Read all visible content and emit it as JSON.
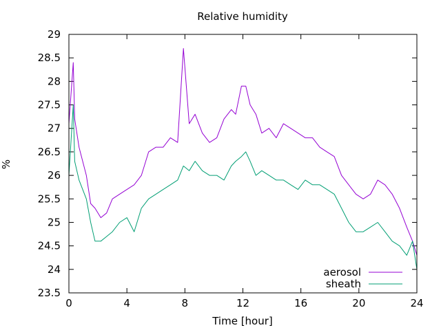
{
  "chart_data": {
    "type": "line",
    "title": "Relative humidity",
    "xlabel": "Time [hour]",
    "ylabel": "%",
    "xlim": [
      0,
      24
    ],
    "ylim": [
      23.5,
      29
    ],
    "x_ticks": [
      0,
      4,
      8,
      12,
      16,
      20,
      24
    ],
    "y_ticks": [
      23.5,
      24,
      24.5,
      25,
      25.5,
      26,
      26.5,
      27,
      27.5,
      28,
      28.5,
      29
    ],
    "grid": false,
    "legend_position": "bottom-right",
    "series": [
      {
        "name": "aerosol",
        "color": "#9400d3",
        "x": [
          0,
          0.3,
          0.4,
          0.7,
          1.2,
          1.5,
          1.8,
          2.2,
          2.6,
          3,
          3.5,
          4,
          4.5,
          5,
          5.5,
          6,
          6.5,
          7,
          7.5,
          7.9,
          8.3,
          8.7,
          9.2,
          9.7,
          10.2,
          10.7,
          11.2,
          11.5,
          11.9,
          12.2,
          12.5,
          12.9,
          13.3,
          13.8,
          14.3,
          14.8,
          15.3,
          15.8,
          16.3,
          16.8,
          17.3,
          17.8,
          18.3,
          18.8,
          19.3,
          19.8,
          20.3,
          20.8,
          21.3,
          21.8,
          22.3,
          22.8,
          23.3,
          23.7,
          24
        ],
        "values": [
          27.1,
          28.4,
          27.2,
          26.6,
          26.0,
          25.4,
          25.3,
          25.1,
          25.2,
          25.5,
          25.6,
          25.7,
          25.8,
          26.0,
          26.5,
          26.6,
          26.6,
          26.8,
          26.7,
          28.7,
          27.1,
          27.3,
          26.9,
          26.7,
          26.8,
          27.2,
          27.4,
          27.3,
          27.9,
          27.9,
          27.5,
          27.3,
          26.9,
          27.0,
          26.8,
          27.1,
          27.0,
          26.9,
          26.8,
          26.8,
          26.6,
          26.5,
          26.4,
          26.0,
          25.8,
          25.6,
          25.5,
          25.6,
          25.9,
          25.8,
          25.6,
          25.3,
          24.9,
          24.6,
          24.3
        ]
      },
      {
        "name": "sheath",
        "color": "#009e73",
        "x": [
          0,
          0.3,
          0.4,
          0.7,
          1.2,
          1.5,
          1.8,
          2.2,
          2.6,
          3,
          3.5,
          4,
          4.5,
          5,
          5.5,
          6,
          6.5,
          7,
          7.5,
          7.9,
          8.3,
          8.7,
          9.2,
          9.7,
          10.2,
          10.7,
          11.2,
          11.5,
          11.9,
          12.2,
          12.5,
          12.9,
          13.3,
          13.8,
          14.3,
          14.8,
          15.3,
          15.8,
          16.3,
          16.8,
          17.3,
          17.8,
          18.3,
          18.8,
          19.3,
          19.8,
          20.3,
          20.8,
          21.3,
          21.8,
          22.3,
          22.8,
          23.3,
          23.7,
          24
        ],
        "values": [
          26.0,
          27.5,
          26.3,
          25.9,
          25.5,
          25.0,
          24.6,
          24.6,
          24.7,
          24.8,
          25.0,
          25.1,
          24.8,
          25.3,
          25.5,
          25.6,
          25.7,
          25.8,
          25.9,
          26.2,
          26.1,
          26.3,
          26.1,
          26.0,
          26.0,
          25.9,
          26.2,
          26.3,
          26.4,
          26.5,
          26.3,
          26.0,
          26.1,
          26.0,
          25.9,
          25.9,
          25.8,
          25.7,
          25.9,
          25.8,
          25.8,
          25.7,
          25.6,
          25.3,
          25.0,
          24.8,
          24.8,
          24.9,
          25.0,
          24.8,
          24.6,
          24.5,
          24.3,
          24.6,
          24.0
        ]
      }
    ]
  }
}
